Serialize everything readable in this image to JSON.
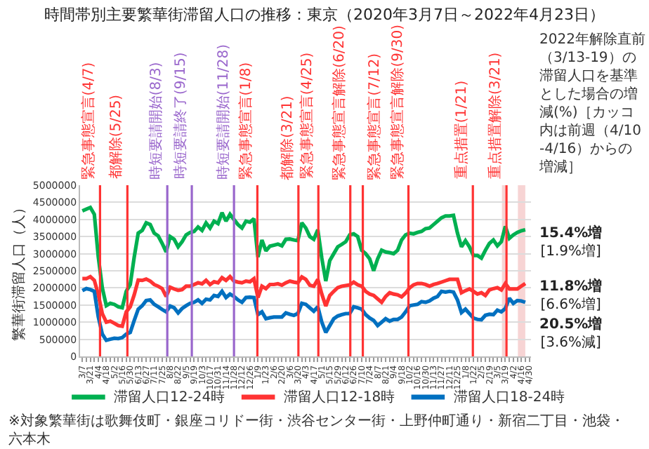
{
  "chart_data": {
    "type": "line",
    "title": "時間帯別主要繁華街滞留人口の推移：東京（2020年3月7日～2022年4月23日）",
    "ylabel": "繁華街滞留人口（人）",
    "x": [
      "2020-03-07",
      "2020-03-14",
      "2020-03-21",
      "2020-03-28",
      "2020-04-04",
      "2020-04-11",
      "2020-04-18",
      "2020-04-25",
      "2020-05-02",
      "2020-05-09",
      "2020-05-16",
      "2020-05-23",
      "2020-05-30",
      "2020-06-06",
      "2020-06-13",
      "2020-06-20",
      "2020-06-27",
      "2020-07-04",
      "2020-07-11",
      "2020-07-18",
      "2020-07-25",
      "2020-08-01",
      "2020-08-08",
      "2020-08-15",
      "2020-08-22",
      "2020-08-29",
      "2020-09-05",
      "2020-09-12",
      "2020-09-19",
      "2020-09-26",
      "2020-10-03",
      "2020-10-10",
      "2020-10-17",
      "2020-10-24",
      "2020-10-31",
      "2020-11-07",
      "2020-11-14",
      "2020-11-21",
      "2020-11-28",
      "2020-12-05",
      "2020-12-12",
      "2020-12-19",
      "2020-12-26",
      "2021-01-02",
      "2021-01-09",
      "2021-01-16",
      "2021-01-23",
      "2021-01-30",
      "2021-02-06",
      "2021-02-13",
      "2021-02-20",
      "2021-02-27",
      "2021-03-06",
      "2021-03-13",
      "2021-03-20",
      "2021-03-27",
      "2021-04-03",
      "2021-04-10",
      "2021-04-17",
      "2021-04-24",
      "2021-05-01",
      "2021-05-08",
      "2021-05-15",
      "2021-05-22",
      "2021-05-29",
      "2021-06-05",
      "2021-06-12",
      "2021-06-19",
      "2021-06-26",
      "2021-07-03",
      "2021-07-10",
      "2021-07-17",
      "2021-07-24",
      "2021-07-31",
      "2021-08-07",
      "2021-08-14",
      "2021-08-21",
      "2021-08-28",
      "2021-09-04",
      "2021-09-11",
      "2021-09-18",
      "2021-09-25",
      "2021-10-02",
      "2021-10-09",
      "2021-10-16",
      "2021-10-23",
      "2021-10-30",
      "2021-11-06",
      "2021-11-13",
      "2021-11-20",
      "2021-11-27",
      "2021-12-04",
      "2021-12-11",
      "2021-12-18",
      "2021-12-25",
      "2022-01-01",
      "2022-01-08",
      "2022-01-15",
      "2022-01-22",
      "2022-01-29",
      "2022-02-05",
      "2022-02-12",
      "2022-02-19",
      "2022-02-26",
      "2022-03-05",
      "2022-03-12",
      "2022-03-19",
      "2022-03-26",
      "2022-04-02",
      "2022-04-09",
      "2022-04-16",
      "2022-04-23"
    ],
    "series": [
      {
        "name": "滞留人口12-24時",
        "color": "#00b050",
        "values": [
          4250000,
          4300000,
          4350000,
          4150000,
          2900000,
          2000000,
          1480000,
          1550000,
          1520000,
          1450000,
          1420000,
          1900000,
          2100000,
          2900000,
          3600000,
          3680000,
          3900000,
          3850000,
          3600000,
          3520000,
          3300000,
          3050000,
          3500000,
          3420000,
          3200000,
          3350000,
          3550000,
          3620000,
          3650000,
          3780000,
          3680000,
          3900000,
          3750000,
          3950000,
          3880000,
          4200000,
          3950000,
          4150000,
          4000000,
          3850000,
          3750000,
          3950000,
          3920000,
          4020000,
          2900000,
          3400000,
          3080000,
          3220000,
          3250000,
          3280000,
          3230000,
          3420000,
          3430000,
          3400000,
          3380000,
          3900000,
          3750000,
          3500000,
          3420000,
          3700000,
          2870000,
          2200000,
          2800000,
          3000000,
          3200000,
          3270000,
          3350000,
          3550000,
          3580000,
          3500000,
          3100000,
          3000000,
          2850000,
          2500000,
          2850000,
          3100000,
          3050000,
          3030000,
          3000000,
          3100000,
          3400000,
          3550000,
          3600000,
          3580000,
          3620000,
          3650000,
          3730000,
          3750000,
          3850000,
          3950000,
          4050000,
          4100000,
          4100000,
          4120000,
          3600000,
          3200000,
          3380000,
          3200000,
          2950000,
          2950000,
          2870000,
          3100000,
          3300000,
          3400000,
          3230000,
          3350000,
          3800000,
          3450000,
          3550000,
          3620000,
          3670000,
          3700000
        ]
      },
      {
        "name": "滞留人口12-18時",
        "color": "#ff3333",
        "values": [
          2270000,
          2270000,
          2330000,
          2220000,
          1800000,
          1250000,
          1000000,
          1030000,
          970000,
          900000,
          880000,
          1300000,
          1450000,
          1800000,
          2230000,
          2220000,
          2260000,
          2200000,
          2100000,
          2050000,
          1980000,
          1750000,
          2020000,
          1970000,
          1930000,
          1950000,
          2050000,
          2050000,
          2100000,
          2150000,
          2120000,
          2220000,
          2100000,
          2180000,
          2150000,
          2300000,
          2220000,
          2330000,
          2200000,
          2170000,
          2150000,
          2200000,
          2180000,
          2270000,
          1720000,
          2050000,
          1980000,
          2100000,
          2100000,
          2120000,
          2080000,
          2150000,
          2200000,
          2170000,
          2150000,
          2320000,
          2250000,
          2080000,
          2050000,
          2250000,
          1820000,
          1470000,
          1780000,
          1900000,
          2010000,
          2050000,
          2070000,
          2090000,
          2170000,
          2090000,
          2050000,
          1900000,
          1820000,
          1780000,
          1680000,
          1580000,
          1750000,
          1860000,
          1820000,
          1800000,
          1740000,
          1850000,
          2000000,
          2090000,
          2130000,
          2130000,
          2100000,
          2050000,
          2100000,
          2130000,
          2170000,
          2210000,
          2250000,
          2250000,
          2250000,
          1860000,
          1920000,
          1970000,
          1900000,
          1820000,
          1860000,
          1780000,
          1940000,
          1980000,
          2010000,
          1940000,
          2130000,
          1970000,
          1970000,
          1970000,
          2050000,
          2130000
        ]
      },
      {
        "name": "滞留人口18-24時",
        "color": "#0070c0",
        "values": [
          1920000,
          1980000,
          1950000,
          1900000,
          1150000,
          650000,
          470000,
          500000,
          530000,
          520000,
          550000,
          650000,
          700000,
          1050000,
          1380000,
          1480000,
          1630000,
          1650000,
          1520000,
          1450000,
          1370000,
          1300000,
          1470000,
          1420000,
          1270000,
          1400000,
          1480000,
          1550000,
          1580000,
          1650000,
          1550000,
          1670000,
          1650000,
          1780000,
          1750000,
          1900000,
          1720000,
          1820000,
          1750000,
          1650000,
          1580000,
          1720000,
          1730000,
          1720000,
          1220000,
          1300000,
          1100000,
          1130000,
          1150000,
          1150000,
          1150000,
          1270000,
          1230000,
          1200000,
          1250000,
          1550000,
          1520000,
          1420000,
          1320000,
          1450000,
          1000000,
          700000,
          900000,
          1100000,
          1180000,
          1220000,
          1250000,
          1250000,
          1450000,
          1420000,
          1380000,
          1220000,
          1120000,
          1050000,
          900000,
          1000000,
          1100000,
          1030000,
          1080000,
          1080000,
          1150000,
          1300000,
          1480000,
          1500000,
          1520000,
          1600000,
          1580000,
          1620000,
          1700000,
          1750000,
          1900000,
          1880000,
          1900000,
          1880000,
          1650000,
          1280000,
          1380000,
          1250000,
          1120000,
          1080000,
          1070000,
          1200000,
          1230000,
          1220000,
          1350000,
          1300000,
          1400000,
          1700000,
          1550000,
          1630000,
          1620000,
          1580000
        ]
      }
    ],
    "xlim": [
      "2020-03-03",
      "2022-05-03"
    ],
    "xticks": [
      {
        "value": "2020-03-07",
        "label": "3/7"
      },
      {
        "value": "2020-03-14",
        "label": null
      },
      {
        "value": "2020-03-21",
        "label": "3/21"
      },
      {
        "value": "2020-03-28",
        "label": null
      },
      {
        "value": "2020-04-04",
        "label": "4/4"
      },
      {
        "value": "2020-04-11",
        "label": null
      },
      {
        "value": "2020-04-18",
        "label": "4/18"
      },
      {
        "value": "2020-04-25",
        "label": null
      },
      {
        "value": "2020-05-02",
        "label": "5/2"
      },
      {
        "value": "2020-05-09",
        "label": null
      },
      {
        "value": "2020-05-16",
        "label": "5/16"
      },
      {
        "value": "2020-05-23",
        "label": null
      },
      {
        "value": "2020-05-30",
        "label": "5/30"
      },
      {
        "value": "2020-06-06",
        "label": null
      },
      {
        "value": "2020-06-13",
        "label": "6/13"
      },
      {
        "value": "2020-06-20",
        "label": null
      },
      {
        "value": "2020-06-27",
        "label": "6/27"
      },
      {
        "value": "2020-07-04",
        "label": null
      },
      {
        "value": "2020-07-11",
        "label": "7/11"
      },
      {
        "value": "2020-07-18",
        "label": null
      },
      {
        "value": "2020-07-25",
        "label": "7/25"
      },
      {
        "value": "2020-08-01",
        "label": null
      },
      {
        "value": "2020-08-08",
        "label": "8/8"
      },
      {
        "value": "2020-08-15",
        "label": null
      },
      {
        "value": "2020-08-22",
        "label": "8/22"
      },
      {
        "value": "2020-08-29",
        "label": null
      },
      {
        "value": "2020-09-05",
        "label": "9/5"
      },
      {
        "value": "2020-09-12",
        "label": null
      },
      {
        "value": "2020-09-19",
        "label": "9/19"
      },
      {
        "value": "2020-09-26",
        "label": null
      },
      {
        "value": "2020-10-03",
        "label": "10/3"
      },
      {
        "value": "2020-10-10",
        "label": null
      },
      {
        "value": "2020-10-17",
        "label": "10/17"
      },
      {
        "value": "2020-10-24",
        "label": null
      },
      {
        "value": "2020-10-31",
        "label": "10/31"
      },
      {
        "value": "2020-11-07",
        "label": null
      },
      {
        "value": "2020-11-14",
        "label": "11/14"
      },
      {
        "value": "2020-11-21",
        "label": null
      },
      {
        "value": "2020-11-28",
        "label": "11/28"
      },
      {
        "value": "2020-12-05",
        "label": null
      },
      {
        "value": "2020-12-12",
        "label": "12/12"
      },
      {
        "value": "2020-12-19",
        "label": null
      },
      {
        "value": "2020-12-26",
        "label": "12/26"
      },
      {
        "value": "2021-01-02",
        "label": null
      },
      {
        "value": "2021-01-09",
        "label": "1/9"
      },
      {
        "value": "2021-01-16",
        "label": null
      },
      {
        "value": "2021-01-23",
        "label": "1/23"
      },
      {
        "value": "2021-01-30",
        "label": null
      },
      {
        "value": "2021-02-06",
        "label": "2/6"
      },
      {
        "value": "2021-02-13",
        "label": null
      },
      {
        "value": "2021-02-20",
        "label": "2/20"
      },
      {
        "value": "2021-02-27",
        "label": null
      },
      {
        "value": "2021-03-06",
        "label": "3/6"
      },
      {
        "value": "2021-03-13",
        "label": null
      },
      {
        "value": "2021-03-20",
        "label": "3/20"
      },
      {
        "value": "2021-03-27",
        "label": null
      },
      {
        "value": "2021-04-03",
        "label": "4/3"
      },
      {
        "value": "2021-04-10",
        "label": null
      },
      {
        "value": "2021-04-17",
        "label": "4/17"
      },
      {
        "value": "2021-04-24",
        "label": null
      },
      {
        "value": "2021-05-01",
        "label": "5/1"
      },
      {
        "value": "2021-05-08",
        "label": null
      },
      {
        "value": "2021-05-15",
        "label": "5/15"
      },
      {
        "value": "2021-05-22",
        "label": null
      },
      {
        "value": "2021-05-29",
        "label": "5/29"
      },
      {
        "value": "2021-06-05",
        "label": null
      },
      {
        "value": "2021-06-12",
        "label": "6/12"
      },
      {
        "value": "2021-06-19",
        "label": null
      },
      {
        "value": "2021-06-26",
        "label": "6/26"
      },
      {
        "value": "2021-07-03",
        "label": null
      },
      {
        "value": "2021-07-10",
        "label": "7/10"
      },
      {
        "value": "2021-07-17",
        "label": null
      },
      {
        "value": "2021-07-24",
        "label": "7/24"
      },
      {
        "value": "2021-07-31",
        "label": null
      },
      {
        "value": "2021-08-07",
        "label": "8/7"
      },
      {
        "value": "2021-08-14",
        "label": null
      },
      {
        "value": "2021-08-21",
        "label": "8/21"
      },
      {
        "value": "2021-08-28",
        "label": null
      },
      {
        "value": "2021-09-04",
        "label": "9/4"
      },
      {
        "value": "2021-09-11",
        "label": null
      },
      {
        "value": "2021-09-18",
        "label": "9/18"
      },
      {
        "value": "2021-09-25",
        "label": null
      },
      {
        "value": "2021-10-02",
        "label": "10/2"
      },
      {
        "value": "2021-10-09",
        "label": null
      },
      {
        "value": "2021-10-16",
        "label": "10/16"
      },
      {
        "value": "2021-10-23",
        "label": null
      },
      {
        "value": "2021-10-30",
        "label": "10/30"
      },
      {
        "value": "2021-11-06",
        "label": null
      },
      {
        "value": "2021-11-13",
        "label": "11/13"
      },
      {
        "value": "2021-11-20",
        "label": null
      },
      {
        "value": "2021-11-27",
        "label": "11/27"
      },
      {
        "value": "2021-12-04",
        "label": null
      },
      {
        "value": "2021-12-11",
        "label": "12/11"
      },
      {
        "value": "2021-12-18",
        "label": null
      },
      {
        "value": "2021-12-25",
        "label": "12/25"
      },
      {
        "value": "2022-01-01",
        "label": null
      },
      {
        "value": "2022-01-08",
        "label": "1/8"
      },
      {
        "value": "2022-01-15",
        "label": null
      },
      {
        "value": "2022-01-22",
        "label": "1/22"
      },
      {
        "value": "2022-01-29",
        "label": null
      },
      {
        "value": "2022-02-05",
        "label": "2/5"
      },
      {
        "value": "2022-02-12",
        "label": null
      },
      {
        "value": "2022-02-19",
        "label": "2/19"
      },
      {
        "value": "2022-02-26",
        "label": null
      },
      {
        "value": "2022-03-05",
        "label": "3/5"
      },
      {
        "value": "2022-03-12",
        "label": null
      },
      {
        "value": "2022-03-19",
        "label": "3/19"
      },
      {
        "value": "2022-03-26",
        "label": null
      },
      {
        "value": "2022-04-02",
        "label": "4/2"
      },
      {
        "value": "2022-04-09",
        "label": null
      },
      {
        "value": "2022-04-16",
        "label": "4/16"
      },
      {
        "value": "2022-04-23",
        "label": null
      },
      {
        "value": "2022-04-30",
        "label": "4/30"
      }
    ],
    "ylim": [
      0,
      5000000
    ],
    "yticks": [
      0,
      500000,
      1000000,
      1500000,
      2000000,
      2500000,
      3000000,
      3500000,
      4000000,
      4500000,
      5000000
    ],
    "ref_lines": [
      {
        "axis": "x",
        "value": "2020-04-07",
        "label": "緊急事態宣言(4/7)",
        "color": "#ff3333"
      },
      {
        "axis": "x",
        "value": "2020-05-25",
        "label": "都解除(5/25)",
        "color": "#ff3333"
      },
      {
        "axis": "x",
        "value": "2020-08-03",
        "label": "時短要請開始(8/3)",
        "color": "#9966cc"
      },
      {
        "axis": "x",
        "value": "2020-09-15",
        "label": "時短要請終了(9/15)",
        "color": "#9966cc"
      },
      {
        "axis": "x",
        "value": "2020-11-28",
        "label": "時短要請開始(11/28)",
        "color": "#9966cc"
      },
      {
        "axis": "x",
        "value": "2021-01-08",
        "label": "緊急事態宣言(1/8)",
        "color": "#ff3333"
      },
      {
        "axis": "x",
        "value": "2021-03-21",
        "label": "都解除(3/21)",
        "color": "#ff3333"
      },
      {
        "axis": "x",
        "value": "2021-04-25",
        "label": "緊急事態宣言(4/25)",
        "color": "#ff3333"
      },
      {
        "axis": "x",
        "value": "2021-06-20",
        "label": "緊急事態宣言解除(6/20)",
        "color": "#ff3333"
      },
      {
        "axis": "x",
        "value": "2021-07-12",
        "label": "緊急事態宣言(7/12)",
        "color": "#ff3333"
      },
      {
        "axis": "x",
        "value": "2021-09-30",
        "label": "緊急事態宣言解除(9/30)",
        "color": "#ff3333"
      },
      {
        "axis": "x",
        "value": "2022-01-21",
        "label": "重点措置(1/21)",
        "color": "#ff3333"
      },
      {
        "axis": "x",
        "value": "2022-03-21",
        "label": "重点措置解除(3/21)",
        "color": "#ff3333"
      }
    ],
    "bands": [
      {
        "axis": "x",
        "from": "2022-03-13",
        "to": "2022-03-19",
        "color": "#f4c2c2"
      },
      {
        "axis": "x",
        "from": "2022-04-10",
        "to": "2022-04-23",
        "color": "#f4c2c2"
      }
    ],
    "annotations": [
      "2022年解除直前（3/13-19）の滞留人口を基準とした場合の増減(%)［カッコ内は前週（4/10-4/16）からの増減］",
      "※対象繁華街は歌舞伎町・銀座コリドー街・渋谷センター街・上野仲町通り・新宿二丁目・池袋・六本木",
      {
        "text": "15.4%増\n[1.9%増]",
        "x": "2022-04-23",
        "y": 3700000
      },
      {
        "text": "11.8%増\n[6.6%増]",
        "x": "2022-04-23",
        "y": 2130000
      },
      {
        "text": "20.5%増\n[3.6%減]",
        "x": "2022-04-23",
        "y": 1580000
      }
    ],
    "grid": "y",
    "legend": "bottom",
    "marker": "none",
    "line_style": "solid"
  }
}
